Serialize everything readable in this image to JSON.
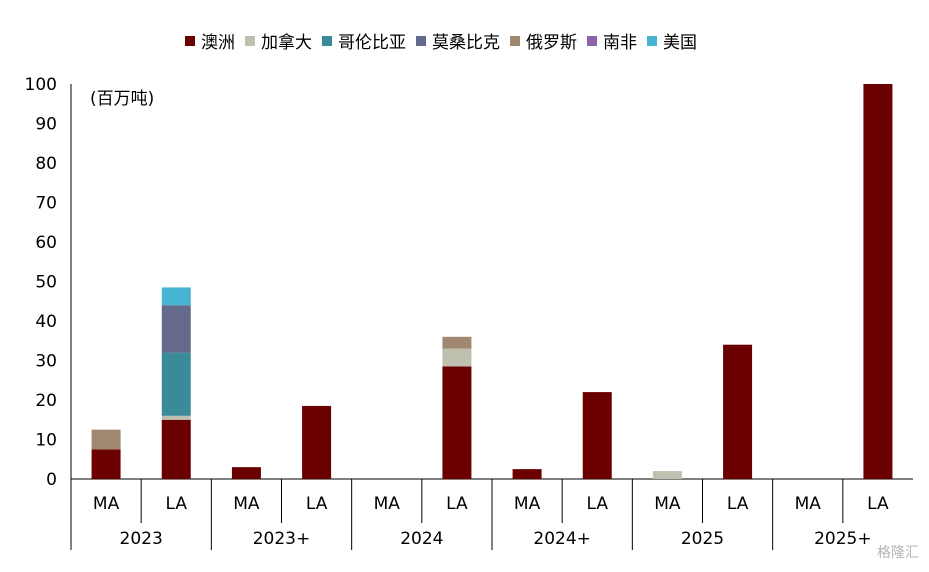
{
  "chart_data": {
    "type": "bar",
    "stacked": true,
    "unit_label": "(百万吨)",
    "ylim": [
      0,
      100
    ],
    "yticks": [
      0,
      10,
      20,
      30,
      40,
      50,
      60,
      70,
      80,
      90,
      100
    ],
    "categories": [
      {
        "group": "2023",
        "sub": "MA"
      },
      {
        "group": "2023",
        "sub": "LA"
      },
      {
        "group": "2023+",
        "sub": "MA"
      },
      {
        "group": "2023+",
        "sub": "LA"
      },
      {
        "group": "2024",
        "sub": "MA"
      },
      {
        "group": "2024",
        "sub": "LA"
      },
      {
        "group": "2024+",
        "sub": "MA"
      },
      {
        "group": "2024+",
        "sub": "LA"
      },
      {
        "group": "2025",
        "sub": "MA"
      },
      {
        "group": "2025",
        "sub": "LA"
      },
      {
        "group": "2025+",
        "sub": "MA"
      },
      {
        "group": "2025+",
        "sub": "LA"
      }
    ],
    "groups": [
      "2023",
      "2023+",
      "2024",
      "2024+",
      "2025",
      "2025+"
    ],
    "legend_position": "top",
    "grid": false,
    "series": [
      {
        "name": "澳洲",
        "color": "#6b0000",
        "values": [
          7.5,
          15,
          3,
          18.5,
          0,
          28.5,
          2.5,
          22,
          0,
          34,
          0,
          100
        ]
      },
      {
        "name": "加拿大",
        "color": "#c0c0b0",
        "values": [
          0,
          1,
          0,
          0,
          0,
          4.5,
          0,
          0,
          2,
          0,
          0,
          0
        ]
      },
      {
        "name": "哥伦比亚",
        "color": "#3a8a9a",
        "values": [
          0,
          16,
          0,
          0,
          0,
          0,
          0,
          0,
          0,
          0,
          0,
          0
        ]
      },
      {
        "name": "莫桑比克",
        "color": "#646a8c",
        "values": [
          0,
          12,
          0,
          0,
          0,
          0,
          0,
          0,
          0,
          0,
          0,
          0
        ]
      },
      {
        "name": "俄罗斯",
        "color": "#a08870",
        "values": [
          5,
          0,
          0,
          0,
          0,
          3,
          0,
          0,
          0,
          0,
          0,
          0
        ]
      },
      {
        "name": "南非",
        "color": "#8a64a8",
        "values": [
          0,
          0,
          0,
          0,
          0,
          0,
          0,
          0,
          0,
          0,
          0,
          0
        ]
      },
      {
        "name": "美国",
        "color": "#46b4d2",
        "values": [
          0,
          4.5,
          0,
          0,
          0,
          0,
          0,
          0,
          0,
          0,
          0,
          0
        ]
      }
    ]
  },
  "watermark": "格隆汇"
}
